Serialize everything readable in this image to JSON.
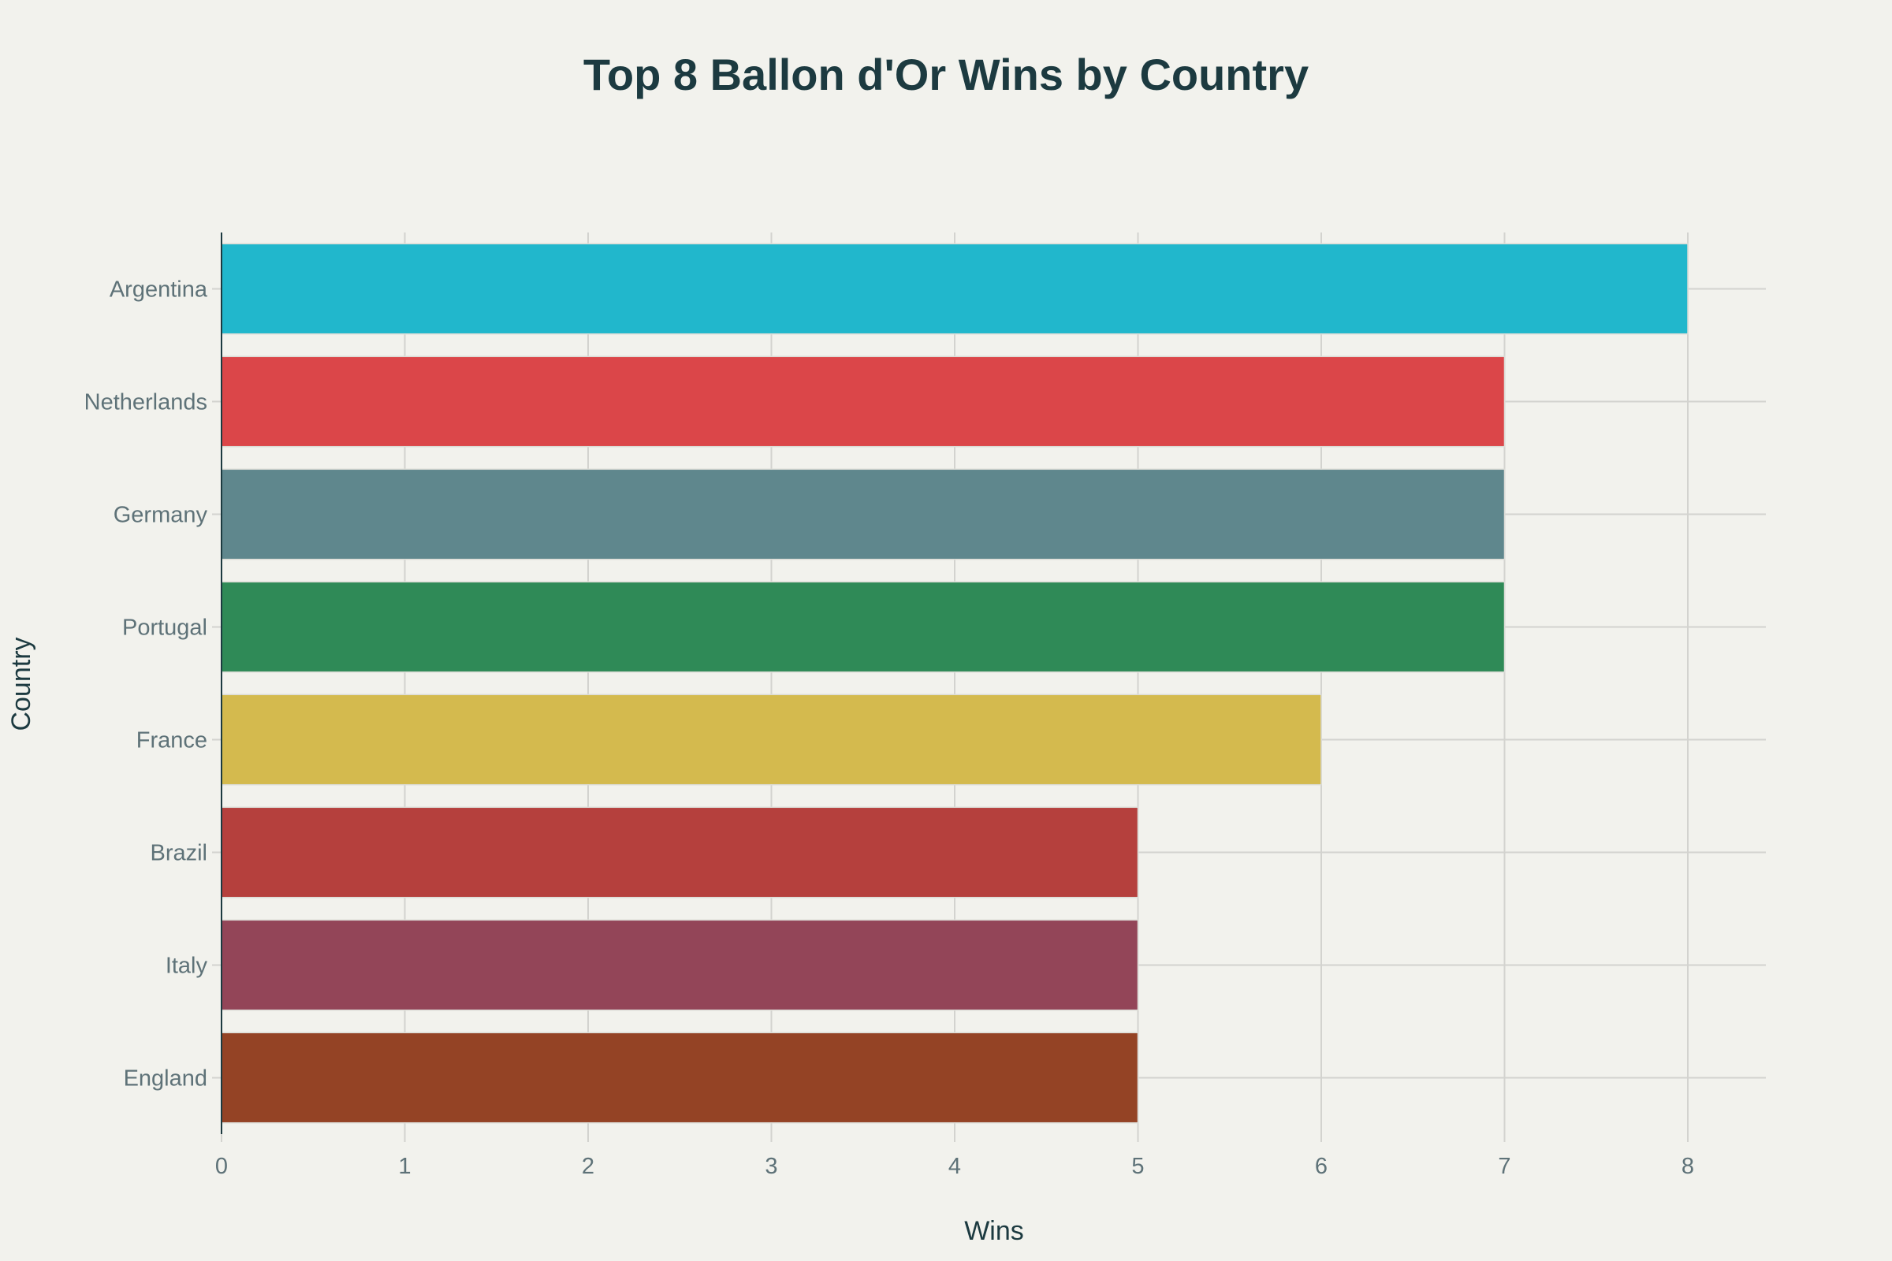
{
  "chart_data": {
    "type": "bar",
    "orientation": "horizontal",
    "title": "Top 8 Ballon d'Or Wins by Country",
    "xlabel": "Wins",
    "ylabel": "Country",
    "categories": [
      "Argentina",
      "Netherlands",
      "Germany",
      "Portugal",
      "France",
      "Brazil",
      "Italy",
      "England"
    ],
    "values": [
      8,
      7,
      7,
      7,
      6,
      5,
      5,
      5
    ],
    "colors": [
      "#21b7cc",
      "#db4649",
      "#5f878d",
      "#2f8a57",
      "#d4ba4e",
      "#b5403d",
      "#934558",
      "#944325"
    ],
    "xlim": [
      0,
      8.4
    ],
    "xticks": [
      "0",
      "1",
      "2",
      "3",
      "4",
      "5",
      "6",
      "7",
      "8"
    ],
    "grid": true
  }
}
